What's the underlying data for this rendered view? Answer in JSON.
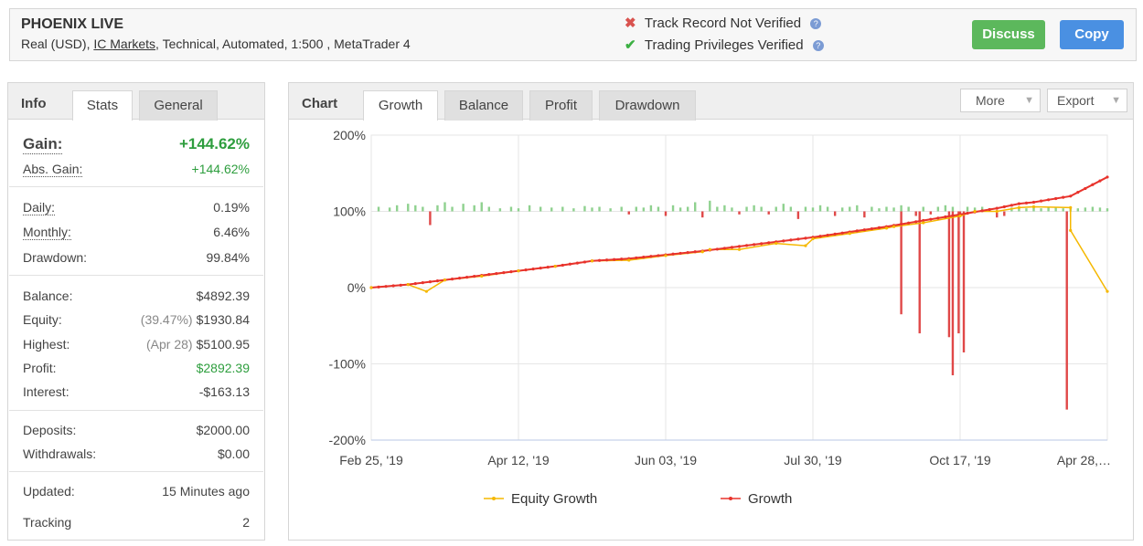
{
  "account": {
    "title": "PHOENIX LIVE",
    "sub_prefix": "Real (USD),",
    "broker": "IC Markets",
    "sub_suffix": ", Technical, Automated, 1:500 , MetaTrader 4"
  },
  "verification": {
    "track_record": "Track Record Not Verified",
    "trading_privileges": "Trading Privileges Verified"
  },
  "buttons": {
    "discuss": "Discuss",
    "copy": "Copy"
  },
  "info_tabs": {
    "info": "Info",
    "stats": "Stats",
    "general": "General"
  },
  "stats": {
    "gain_label": "Gain:",
    "gain_value": "+144.62%",
    "abs_gain_label": "Abs. Gain:",
    "abs_gain_value": "+144.62%",
    "daily_label": "Daily:",
    "daily_value": "0.19%",
    "monthly_label": "Monthly:",
    "monthly_value": "6.46%",
    "drawdown_label": "Drawdown:",
    "drawdown_value": "99.84%",
    "balance_label": "Balance:",
    "balance_value": "$4892.39",
    "equity_label": "Equity:",
    "equity_pct": "(39.47%)",
    "equity_value": "$1930.84",
    "highest_label": "Highest:",
    "highest_date": "(Apr 28)",
    "highest_value": "$5100.95",
    "profit_label": "Profit:",
    "profit_value": "$2892.39",
    "interest_label": "Interest:",
    "interest_value": "-$163.13",
    "deposits_label": "Deposits:",
    "deposits_value": "$2000.00",
    "withdrawals_label": "Withdrawals:",
    "withdrawals_value": "$0.00",
    "updated_label": "Updated:",
    "updated_value": "15 Minutes ago",
    "tracking_label": "Tracking",
    "tracking_value": "2"
  },
  "chart_tabs": {
    "chart": "Chart",
    "growth": "Growth",
    "balance": "Balance",
    "profit": "Profit",
    "drawdown": "Drawdown"
  },
  "chart_controls": {
    "more": "More",
    "export": "Export"
  },
  "colors": {
    "growth": "#e8332c",
    "equity": "#f5b800",
    "profit_bar": "#8fd18f",
    "loss_bar": "#e04848",
    "discuss": "#5cb85c",
    "copy": "#4a90e2"
  },
  "chart_data": {
    "type": "line",
    "ylim": [
      -200,
      200
    ],
    "y_ticks": [
      "200%",
      "100%",
      "0%",
      "-100%",
      "-200%"
    ],
    "x_ticks": [
      "Feb 25, '19",
      "Apr 12, '19",
      "Jun 03, '19",
      "Jul 30, '19",
      "Oct 17, '19",
      "Apr 28,…"
    ],
    "x": [
      0,
      5,
      10,
      15,
      20,
      25,
      30,
      35,
      40,
      45,
      50,
      55,
      60,
      65,
      70,
      75,
      80,
      85,
      88,
      90,
      95,
      100
    ],
    "series": [
      {
        "name": "Growth",
        "values": [
          0,
          4,
          10,
          16,
          22,
          28,
          35,
          38,
          43,
          48,
          54,
          60,
          66,
          73,
          80,
          88,
          96,
          104,
          110,
          112,
          120,
          145
        ]
      },
      {
        "name": "Equity Growth",
        "values": [
          0,
          4,
          10,
          15,
          22,
          28,
          35,
          36,
          42,
          47,
          50,
          58,
          64,
          71,
          78,
          85,
          94,
          100,
          105,
          106,
          105,
          -5
        ]
      }
    ],
    "equity_dips": [
      {
        "x": 7.5,
        "value": -5
      },
      {
        "x": 46,
        "value": 50
      },
      {
        "x": 59,
        "value": 55
      },
      {
        "x": 71,
        "value": 80
      },
      {
        "x": 82,
        "value": 100
      },
      {
        "x": 95,
        "value": 75
      }
    ],
    "bars": [
      {
        "x": 1,
        "value": 6
      },
      {
        "x": 2.5,
        "value": 5
      },
      {
        "x": 3.5,
        "value": 8
      },
      {
        "x": 5,
        "value": 10
      },
      {
        "x": 6,
        "value": 8
      },
      {
        "x": 7,
        "value": 6
      },
      {
        "x": 8,
        "value": -18
      },
      {
        "x": 9,
        "value": 8
      },
      {
        "x": 10,
        "value": 12
      },
      {
        "x": 11,
        "value": 6
      },
      {
        "x": 12.5,
        "value": 10
      },
      {
        "x": 14,
        "value": 8
      },
      {
        "x": 15,
        "value": 12
      },
      {
        "x": 16,
        "value": 6
      },
      {
        "x": 17.5,
        "value": 4
      },
      {
        "x": 19,
        "value": 6
      },
      {
        "x": 20,
        "value": 4
      },
      {
        "x": 21.5,
        "value": 8
      },
      {
        "x": 23,
        "value": 6
      },
      {
        "x": 24.5,
        "value": 5
      },
      {
        "x": 26,
        "value": 6
      },
      {
        "x": 27.5,
        "value": 4
      },
      {
        "x": 29,
        "value": 7
      },
      {
        "x": 30,
        "value": 5
      },
      {
        "x": 31,
        "value": 6
      },
      {
        "x": 32.5,
        "value": 4
      },
      {
        "x": 34,
        "value": 6
      },
      {
        "x": 35,
        "value": -4
      },
      {
        "x": 36,
        "value": 6
      },
      {
        "x": 37,
        "value": 5
      },
      {
        "x": 38,
        "value": 8
      },
      {
        "x": 39,
        "value": 6
      },
      {
        "x": 40,
        "value": -6
      },
      {
        "x": 41,
        "value": 8
      },
      {
        "x": 42,
        "value": 5
      },
      {
        "x": 43,
        "value": 6
      },
      {
        "x": 44,
        "value": 12
      },
      {
        "x": 45,
        "value": -8
      },
      {
        "x": 46,
        "value": 14
      },
      {
        "x": 47,
        "value": 6
      },
      {
        "x": 48,
        "value": 8
      },
      {
        "x": 49,
        "value": 5
      },
      {
        "x": 50,
        "value": -4
      },
      {
        "x": 51,
        "value": 6
      },
      {
        "x": 52,
        "value": 8
      },
      {
        "x": 53,
        "value": 6
      },
      {
        "x": 54,
        "value": -4
      },
      {
        "x": 55,
        "value": 6
      },
      {
        "x": 56,
        "value": 10
      },
      {
        "x": 57,
        "value": 6
      },
      {
        "x": 58,
        "value": -10
      },
      {
        "x": 59,
        "value": 6
      },
      {
        "x": 60,
        "value": 5
      },
      {
        "x": 61,
        "value": 8
      },
      {
        "x": 62,
        "value": 6
      },
      {
        "x": 63,
        "value": -6
      },
      {
        "x": 64,
        "value": 5
      },
      {
        "x": 65,
        "value": 6
      },
      {
        "x": 66,
        "value": 8
      },
      {
        "x": 67,
        "value": -8
      },
      {
        "x": 68,
        "value": 6
      },
      {
        "x": 69,
        "value": 4
      },
      {
        "x": 70,
        "value": 6
      },
      {
        "x": 71,
        "value": 5
      },
      {
        "x": 72,
        "value": 8
      },
      {
        "x": 73,
        "value": 6
      },
      {
        "x": 74,
        "value": -6
      },
      {
        "x": 75,
        "value": 6
      },
      {
        "x": 76,
        "value": -4
      },
      {
        "x": 77,
        "value": 6
      },
      {
        "x": 78,
        "value": 8
      },
      {
        "x": 79,
        "value": 6
      },
      {
        "x": 80,
        "value": -6
      },
      {
        "x": 81,
        "value": 6
      },
      {
        "x": 82,
        "value": 5
      },
      {
        "x": 83,
        "value": 6
      },
      {
        "x": 84,
        "value": 4
      },
      {
        "x": 85,
        "value": -8
      },
      {
        "x": 86,
        "value": -6
      },
      {
        "x": 87,
        "value": 5
      },
      {
        "x": 88,
        "value": 6
      },
      {
        "x": 89,
        "value": 4
      },
      {
        "x": 90,
        "value": 5
      },
      {
        "x": 91,
        "value": 4
      },
      {
        "x": 92,
        "value": 6
      },
      {
        "x": 93,
        "value": 5
      },
      {
        "x": 94,
        "value": 4
      },
      {
        "x": 95,
        "value": 5
      },
      {
        "x": 96,
        "value": 4
      },
      {
        "x": 97,
        "value": 5
      },
      {
        "x": 98,
        "value": 6
      },
      {
        "x": 99,
        "value": 5
      },
      {
        "x": 100,
        "value": 4
      }
    ],
    "loss_spikes": [
      {
        "x": 72,
        "value": -35
      },
      {
        "x": 74.5,
        "value": -60
      },
      {
        "x": 78.5,
        "value": -65
      },
      {
        "x": 79,
        "value": -115
      },
      {
        "x": 79.8,
        "value": -60
      },
      {
        "x": 80.5,
        "value": -85
      },
      {
        "x": 94.5,
        "value": -160
      }
    ],
    "legend": [
      "Equity Growth",
      "Growth"
    ],
    "grid": true,
    "legend_position": "bottom"
  }
}
